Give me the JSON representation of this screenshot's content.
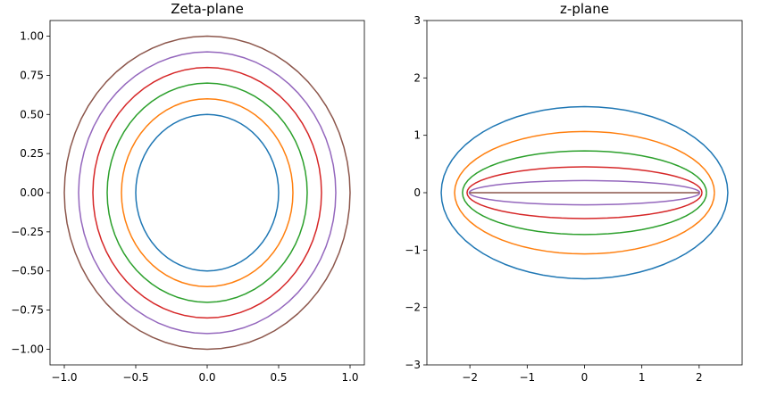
{
  "chart_data": [
    {
      "type": "line",
      "title": "Zeta-plane",
      "xlabel": "",
      "ylabel": "",
      "xlim": [
        -1.1,
        1.1
      ],
      "ylim": [
        -1.1,
        1.1
      ],
      "xticks": [
        -1.0,
        -0.5,
        0.0,
        0.5,
        1.0
      ],
      "xtick_labels": [
        "−1.0",
        "−0.5",
        "0.0",
        "0.5",
        "1.0"
      ],
      "yticks": [
        -1.0,
        -0.75,
        -0.5,
        -0.25,
        0.0,
        0.25,
        0.5,
        0.75,
        1.0
      ],
      "ytick_labels": [
        "−1.00",
        "−0.75",
        "−0.50",
        "−0.25",
        "0.00",
        "0.25",
        "0.50",
        "0.75",
        "1.00"
      ],
      "grid": false,
      "series": [
        {
          "shape": "circle",
          "radius": 0.5,
          "color": "#1f77b4"
        },
        {
          "shape": "circle",
          "radius": 0.6,
          "color": "#ff7f0e"
        },
        {
          "shape": "circle",
          "radius": 0.7,
          "color": "#2ca02c"
        },
        {
          "shape": "circle",
          "radius": 0.8,
          "color": "#d62728"
        },
        {
          "shape": "circle",
          "radius": 0.9,
          "color": "#9467bd"
        },
        {
          "shape": "circle",
          "radius": 1.0,
          "color": "#8c564b"
        }
      ]
    },
    {
      "type": "line",
      "title": "z-plane",
      "xlabel": "",
      "ylabel": "",
      "xlim": [
        -2.75,
        2.75
      ],
      "ylim": [
        -3,
        3
      ],
      "xticks": [
        -2,
        -1,
        0,
        1,
        2
      ],
      "xtick_labels": [
        "−2",
        "−1",
        "0",
        "1",
        "2"
      ],
      "yticks": [
        -3,
        -2,
        -1,
        0,
        1,
        2,
        3
      ],
      "ytick_labels": [
        "−3",
        "−2",
        "−1",
        "0",
        "1",
        "2",
        "3"
      ],
      "grid": false,
      "series": [
        {
          "shape": "ellipse",
          "semi_major": 2.5,
          "semi_minor": 1.5,
          "color": "#1f77b4"
        },
        {
          "shape": "ellipse",
          "semi_major": 2.267,
          "semi_minor": 1.067,
          "color": "#ff7f0e"
        },
        {
          "shape": "ellipse",
          "semi_major": 2.129,
          "semi_minor": 0.729,
          "color": "#2ca02c"
        },
        {
          "shape": "ellipse",
          "semi_major": 2.05,
          "semi_minor": 0.45,
          "color": "#d62728"
        },
        {
          "shape": "ellipse",
          "semi_major": 2.011,
          "semi_minor": 0.211,
          "color": "#9467bd"
        },
        {
          "shape": "ellipse",
          "semi_major": 2.0,
          "semi_minor": 0.0,
          "color": "#8c564b"
        }
      ]
    }
  ]
}
